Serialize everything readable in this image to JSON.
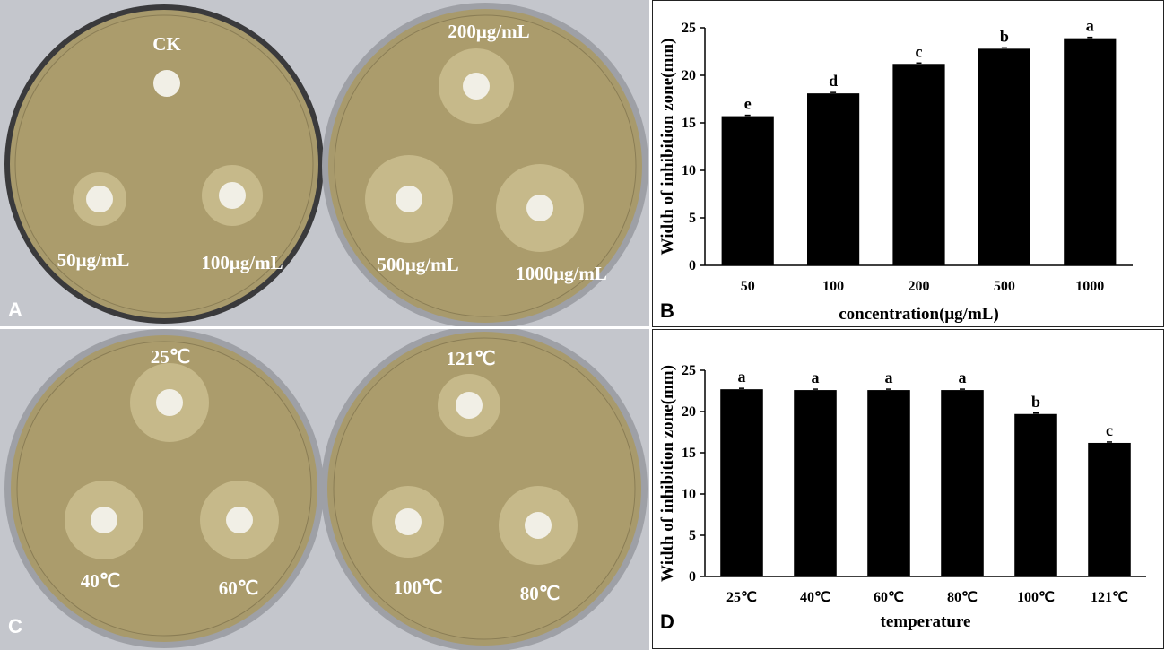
{
  "panels": {
    "A": {
      "letter": "A",
      "plate_left_labels": {
        "top": "CK",
        "bottom_left": "50μg/mL",
        "bottom_right": "100μg/mL"
      },
      "plate_right_labels": {
        "top": "200μg/mL",
        "bottom_left": "500μg/mL",
        "bottom_right": "1000μg/mL"
      }
    },
    "C": {
      "letter": "C",
      "plate_left_labels": {
        "top": "25℃",
        "bottom_left": "40℃",
        "bottom_right": "60℃"
      },
      "plate_right_labels": {
        "top": "121℃",
        "bottom_left": "100℃",
        "bottom_right": "80℃"
      }
    },
    "B": {
      "letter": "B"
    },
    "D": {
      "letter": "D"
    }
  },
  "chart_data": [
    {
      "panel": "B",
      "type": "bar",
      "categories": [
        "50",
        "100",
        "200",
        "500",
        "1000"
      ],
      "values": [
        15.7,
        18.1,
        21.2,
        22.8,
        23.9
      ],
      "significance": [
        "e",
        "d",
        "c",
        "b",
        "a"
      ],
      "xlabel": "concentration(μg/mL)",
      "ylabel": "Width of inhibition zone(mm)",
      "ylim": [
        0,
        25
      ],
      "yticks": [
        0,
        5,
        10,
        15,
        20,
        25
      ],
      "bar_color": "#000000"
    },
    {
      "panel": "D",
      "type": "bar",
      "categories": [
        "25℃",
        "40℃",
        "60℃",
        "80℃",
        "100℃",
        "121℃"
      ],
      "values": [
        22.7,
        22.6,
        22.6,
        22.6,
        19.7,
        16.2
      ],
      "significance": [
        "a",
        "a",
        "a",
        "a",
        "b",
        "c"
      ],
      "xlabel": "temperature",
      "ylabel": "Width of inhibition zone(mm)",
      "ylim": [
        0,
        25
      ],
      "yticks": [
        0,
        5,
        10,
        15,
        20,
        25
      ],
      "bar_color": "#000000"
    }
  ]
}
